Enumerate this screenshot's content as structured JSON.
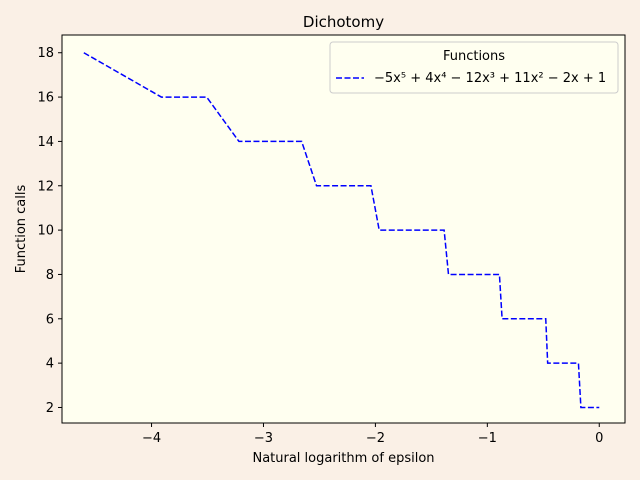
{
  "chart_data": {
    "type": "line",
    "title": "Dichotomy",
    "xlabel": "Natural logarithm of epsilon",
    "ylabel": "Function calls",
    "xlim": [
      -4.8,
      0.23
    ],
    "ylim": [
      1.3,
      18.8
    ],
    "xticks": [
      -4,
      -3,
      -2,
      -1,
      0
    ],
    "xtick_labels": [
      "−4",
      "−3",
      "−2",
      "−1",
      "0"
    ],
    "yticks": [
      2,
      4,
      6,
      8,
      10,
      12,
      14,
      16,
      18
    ],
    "ytick_labels": [
      "2",
      "4",
      "6",
      "8",
      "10",
      "12",
      "14",
      "16",
      "18"
    ],
    "grid": false,
    "legend": {
      "title": "Functions",
      "placement": "top-right"
    },
    "series": [
      {
        "name": "−5x⁵ + 4x⁴ − 12x³ + 11x² − 2x + 1",
        "color": "#0000ff",
        "style": "dashed",
        "x": [
          -4.605,
          -3.912,
          -3.507,
          -3.219,
          -2.659,
          -2.526,
          -2.04,
          -1.966,
          -1.386,
          -1.347,
          -0.892,
          -0.868,
          -0.478,
          -0.461,
          -0.186,
          -0.164,
          0.0
        ],
        "y": [
          18,
          16,
          16,
          14,
          14,
          12,
          12,
          10,
          10,
          8,
          8,
          6,
          6,
          4,
          4,
          2,
          2
        ]
      }
    ]
  }
}
